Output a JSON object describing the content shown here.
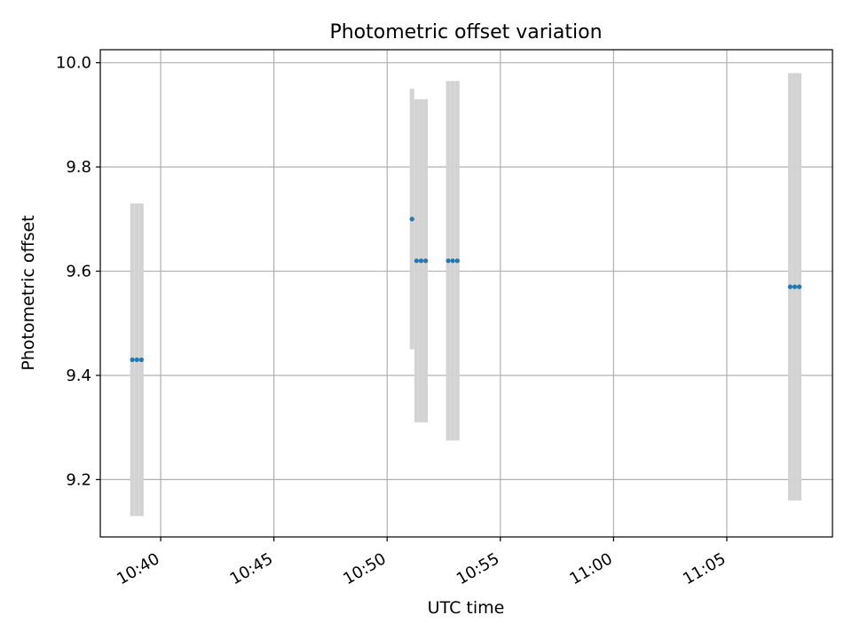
{
  "chart_data": {
    "type": "scatter",
    "title": "Photometric offset variation",
    "xlabel": "UTC time",
    "ylabel": "Photometric offset",
    "x_axis_type": "time",
    "xlim": [
      "10:37:20",
      "11:09:40"
    ],
    "ylim": [
      9.09,
      10.025
    ],
    "x_ticks": [
      "10:40",
      "10:45",
      "10:50",
      "10:55",
      "11:00",
      "11:05"
    ],
    "y_ticks": [
      9.2,
      9.4,
      9.6,
      9.8,
      10.0
    ],
    "y_tick_labels": [
      "9.2",
      "9.4",
      "9.6",
      "9.8",
      "10.0"
    ],
    "grid": true,
    "colors": {
      "points": "#1f77b4",
      "errorbars": "#d3d3d3",
      "grid": "#b0b0b0"
    },
    "series": [
      {
        "points": [
          {
            "x": "10:38:45",
            "y": 9.43,
            "yerr": 0.3
          },
          {
            "x": "10:38:57",
            "y": 9.43,
            "yerr": 0.3
          },
          {
            "x": "10:39:09",
            "y": 9.43,
            "yerr": 0.3
          },
          {
            "x": "10:51:06",
            "y": 9.7,
            "yerr": 0.25
          },
          {
            "x": "10:51:18",
            "y": 9.62,
            "yerr": 0.31
          },
          {
            "x": "10:51:30",
            "y": 9.62,
            "yerr": 0.31
          },
          {
            "x": "10:51:42",
            "y": 9.62,
            "yerr": 0.31
          },
          {
            "x": "10:52:42",
            "y": 9.62,
            "yerr": 0.345
          },
          {
            "x": "10:52:54",
            "y": 9.62,
            "yerr": 0.345
          },
          {
            "x": "10:53:06",
            "y": 9.62,
            "yerr": 0.345
          },
          {
            "x": "11:07:48",
            "y": 9.57,
            "yerr": 0.41
          },
          {
            "x": "11:08:00",
            "y": 9.57,
            "yerr": 0.41
          },
          {
            "x": "11:08:12",
            "y": 9.57,
            "yerr": 0.41
          }
        ]
      }
    ]
  }
}
